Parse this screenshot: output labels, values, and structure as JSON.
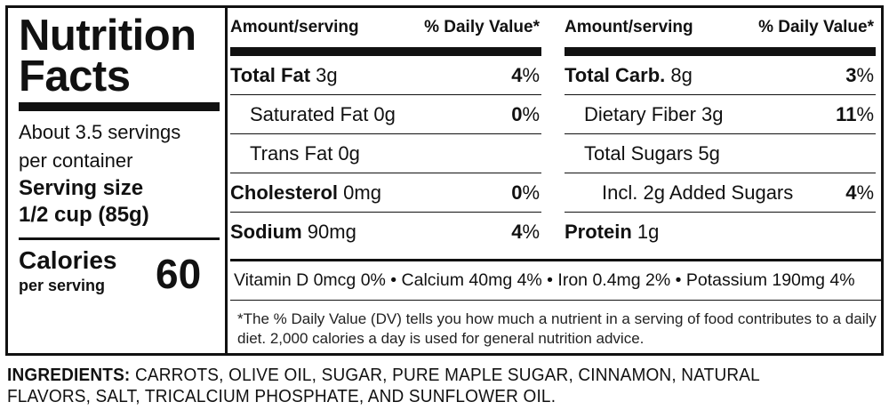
{
  "label": {
    "title_line1": "Nutrition",
    "title_line2": "Facts",
    "servings_line1": "About 3.5 servings",
    "servings_line2": "per container",
    "serving_size_label": "Serving size",
    "serving_size_value": "1/2 cup (85g)",
    "calories_label": "Calories",
    "calories_sub": "per serving",
    "calories_value": "60"
  },
  "columns": [
    {
      "header_amount": "Amount/serving",
      "header_dv": "% Daily Value*",
      "rows": [
        {
          "name": "Total Fat",
          "amount": "3g",
          "dv_num": "4",
          "dv_pct": "%"
        },
        {
          "name": "Saturated Fat 0g",
          "amount": "",
          "dv_num": "0",
          "dv_pct": "%"
        },
        {
          "name": "Trans Fat 0g",
          "amount": "",
          "dv_num": "",
          "dv_pct": ""
        },
        {
          "name": "Cholesterol",
          "amount": "0mg",
          "dv_num": "0",
          "dv_pct": "%"
        },
        {
          "name": "Sodium",
          "amount": "90mg",
          "dv_num": "4",
          "dv_pct": "%"
        }
      ]
    },
    {
      "header_amount": "Amount/serving",
      "header_dv": "% Daily Value*",
      "rows": [
        {
          "name": "Total Carb.",
          "amount": "8g",
          "dv_num": "3",
          "dv_pct": "%"
        },
        {
          "name": "Dietary Fiber 3g",
          "amount": "",
          "dv_num": "11",
          "dv_pct": "%"
        },
        {
          "name": "Total Sugars 5g",
          "amount": "",
          "dv_num": "",
          "dv_pct": ""
        },
        {
          "name": "Incl. 2g Added Sugars",
          "amount": "",
          "dv_num": "4",
          "dv_pct": "%"
        },
        {
          "name": "Protein",
          "amount": "1g",
          "dv_num": "",
          "dv_pct": ""
        }
      ]
    }
  ],
  "vitamins": "Vitamin D 0mcg 0% • Calcium 40mg 4% • Iron 0.4mg 2% • Potassium 190mg 4%",
  "footnote": "*The % Daily Value (DV) tells you how much a nutrient in a serving of food contributes to a daily diet. 2,000 calories a day is used for general nutrition advice.",
  "ingredients": {
    "label": "INGREDIENTS:",
    "text": "CARROTS, OLIVE OIL, SUGAR, PURE MAPLE SUGAR, CINNAMON, NATURAL FLAVORS, SALT, TRICALCIUM PHOSPHATE, AND SUNFLOWER OIL."
  }
}
